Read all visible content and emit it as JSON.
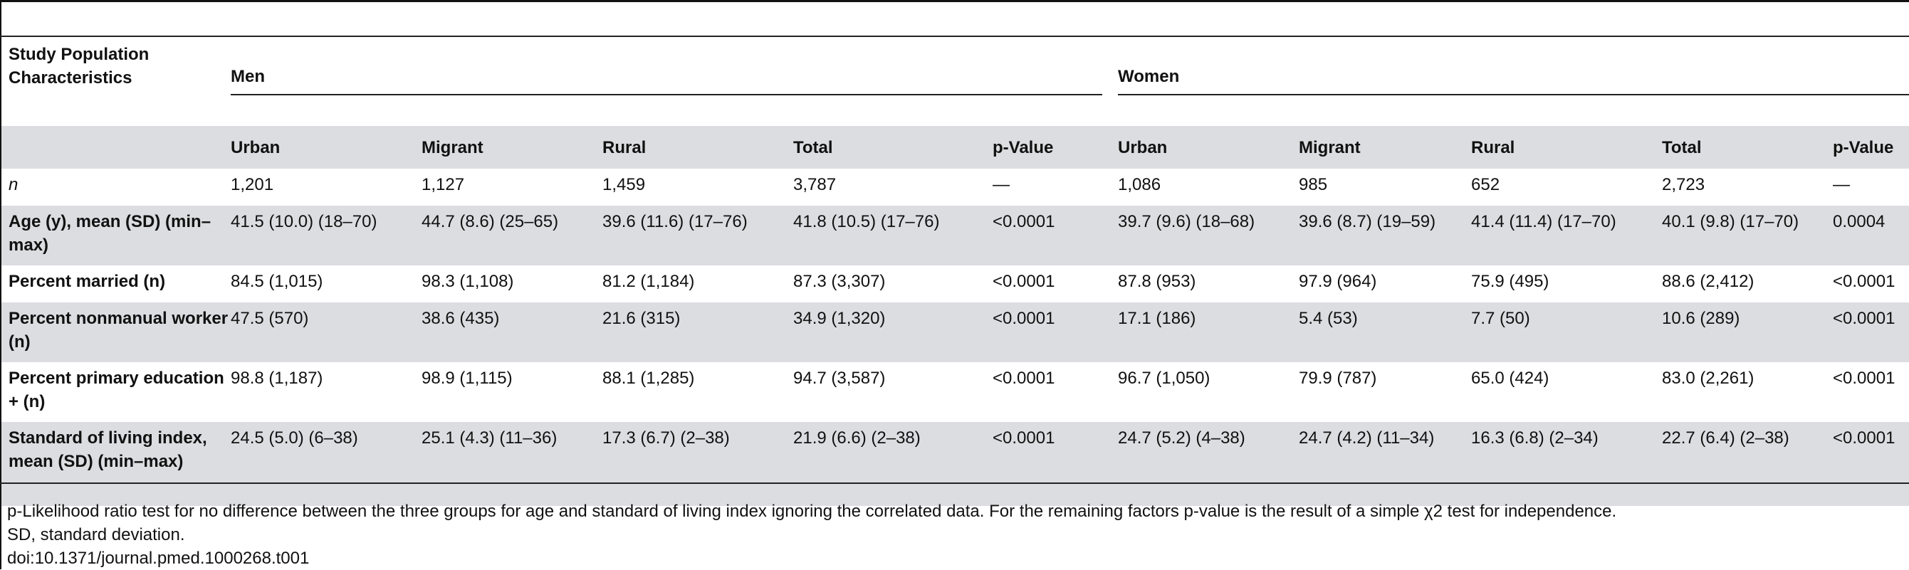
{
  "table": {
    "row_header_label": "Study Population Characteristics",
    "groups": [
      "Men",
      "Women"
    ],
    "subheaders": [
      "Urban",
      "Migrant",
      "Rural",
      "Total",
      "p-Value",
      "Urban",
      "Migrant",
      "Rural",
      "Total",
      "p-Value"
    ],
    "rows": [
      {
        "label": "n",
        "cells": [
          "1,201",
          "1,127",
          "1,459",
          "3,787",
          "—",
          "1,086",
          "985",
          "652",
          "2,723",
          "—"
        ]
      },
      {
        "label": "Age (y), mean (SD) (min–max)",
        "cells": [
          "41.5 (10.0) (18–70)",
          "44.7 (8.6) (25–65)",
          "39.6 (11.6) (17–76)",
          "41.8 (10.5) (17–76)",
          "<0.0001",
          "39.7 (9.6) (18–68)",
          "39.6 (8.7) (19–59)",
          "41.4 (11.4) (17–70)",
          "40.1 (9.8) (17–70)",
          "0.0004"
        ]
      },
      {
        "label": "Percent married (n)",
        "cells": [
          "84.5 (1,015)",
          "98.3 (1,108)",
          "81.2 (1,184)",
          "87.3 (3,307)",
          "<0.0001",
          "87.8 (953)",
          "97.9 (964)",
          "75.9 (495)",
          "88.6 (2,412)",
          "<0.0001"
        ]
      },
      {
        "label": "Percent nonmanual worker (n)",
        "cells": [
          "47.5 (570)",
          "38.6 (435)",
          "21.6 (315)",
          "34.9 (1,320)",
          "<0.0001",
          "17.1 (186)",
          "5.4 (53)",
          "7.7 (50)",
          "10.6 (289)",
          "<0.0001"
        ]
      },
      {
        "label": "Percent primary education + (n)",
        "cells": [
          "98.8 (1,187)",
          "98.9 (1,115)",
          "88.1 (1,285)",
          "94.7 (3,587)",
          "<0.0001",
          "96.7 (1,050)",
          "79.9 (787)",
          "65.0 (424)",
          "83.0 (2,261)",
          "<0.0001"
        ]
      },
      {
        "label": "Standard of living index, mean (SD) (min–max)",
        "cells": [
          "24.5 (5.0) (6–38)",
          "25.1 (4.3) (11–36)",
          "17.3 (6.7) (2–38)",
          "21.9 (6.6) (2–38)",
          "<0.0001",
          "24.7 (5.2) (4–38)",
          "24.7 (4.2) (11–34)",
          "16.3 (6.8) (2–34)",
          "22.7 (6.4) (2–38)",
          "<0.0001"
        ]
      }
    ]
  },
  "footnotes": {
    "line1": "p-Likelihood ratio test for no difference between the three groups for age and standard of living index ignoring the correlated data. For the remaining factors p-value is the result of a simple χ2 test for independence.",
    "line2": "SD, standard deviation.",
    "line3": "doi:10.1371/journal.pmed.1000268.t001"
  }
}
